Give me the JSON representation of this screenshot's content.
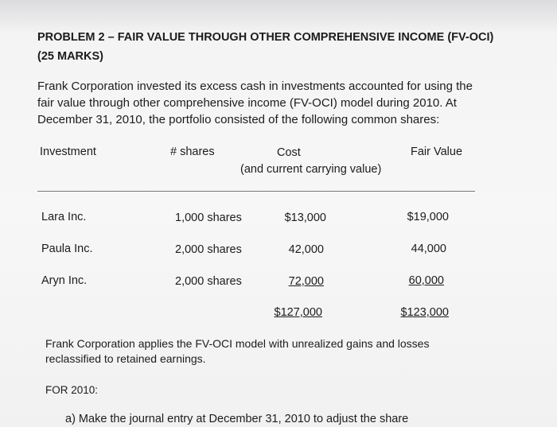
{
  "header": {
    "title": "PROBLEM 2 – FAIR VALUE THROUGH OTHER COMPREHENSIVE INCOME (FV-OCI)",
    "marks": "(25 MARKS)"
  },
  "intro": [
    "Frank Corporation invested its excess cash in investments accounted for using the",
    "fair value through other comprehensive income (FV-OCI) model during 2010.  At",
    "December 31, 2010, the portfolio consisted of the following common shares:"
  ],
  "table": {
    "columns": [
      "Investment",
      "# shares",
      "Cost",
      "Fair Value"
    ],
    "cost_note": "(and current carrying value)",
    "rows": [
      [
        "Lara Inc.",
        "1,000 shares",
        "$13,000",
        "$19,000"
      ],
      [
        "Paula Inc.",
        "2,000 shares",
        "42,000",
        "44,000"
      ],
      [
        "Aryn Inc.",
        "2,000 shares",
        "72,000",
        "60,000"
      ]
    ],
    "totals": [
      "$127,000",
      "$123,000"
    ]
  },
  "note": [
    "Frank Corporation applies the FV-OCI model with unrealized gains and losses",
    "reclassified to retained earnings."
  ],
  "section": "FOR 2010:",
  "question": "a) Make the journal entry at December 31, 2010 to adjust the share"
}
